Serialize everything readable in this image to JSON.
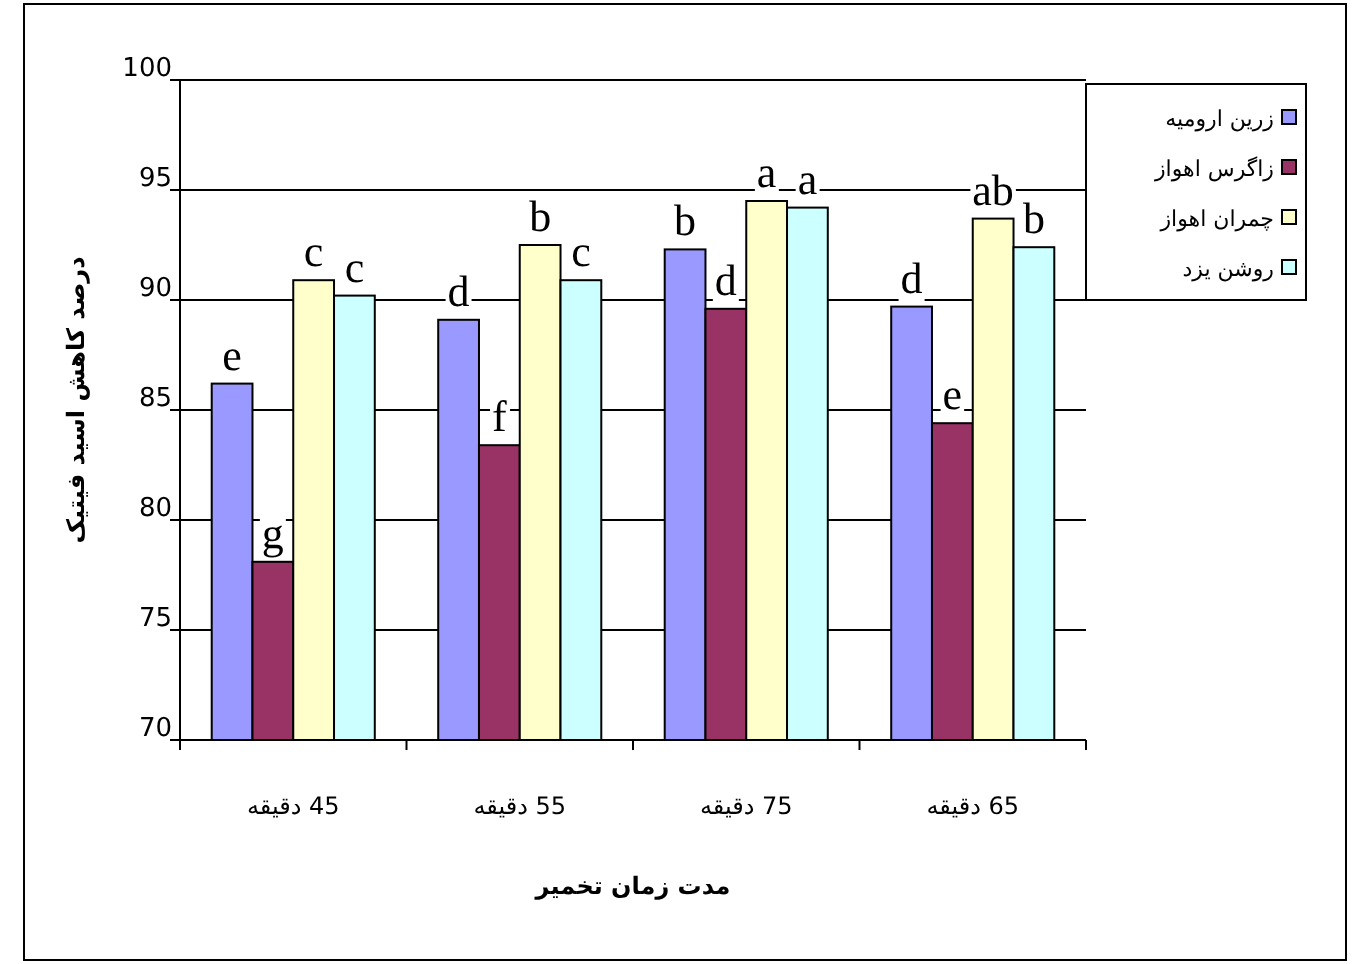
{
  "chart_data": {
    "type": "bar",
    "xlabel": "مدت زمان تخمیر",
    "ylabel": "درصد کاهش اسید فیتیک",
    "categories": [
      "45 دقیقه",
      "55 دقیقه",
      "75 دقیقه",
      "65 دقیقه"
    ],
    "ylim": [
      70,
      100
    ],
    "yticks": [
      70,
      75,
      80,
      85,
      90,
      95,
      100
    ],
    "grid": "y",
    "legend": "right",
    "series": [
      {
        "name": "زرین ارومیه",
        "color": "#9999ff",
        "values": [
          86.2,
          89.1,
          92.3,
          89.7
        ],
        "value_labels": [
          "e",
          "d",
          "b",
          "d"
        ]
      },
      {
        "name": "زاگرس اهواز",
        "color": "#993366",
        "values": [
          78.1,
          83.4,
          89.6,
          84.4
        ],
        "value_labels": [
          "g",
          "f",
          "d",
          "e"
        ]
      },
      {
        "name": "چمران اهواز",
        "color": "#ffffcc",
        "values": [
          90.9,
          92.5,
          94.5,
          93.7
        ],
        "value_labels": [
          "c",
          "b",
          "a",
          "ab"
        ]
      },
      {
        "name": "روشن یزد",
        "color": "#ccffff",
        "values": [
          90.2,
          90.9,
          94.2,
          92.4
        ],
        "value_labels": [
          "c",
          "c",
          "a",
          "b"
        ]
      }
    ]
  }
}
